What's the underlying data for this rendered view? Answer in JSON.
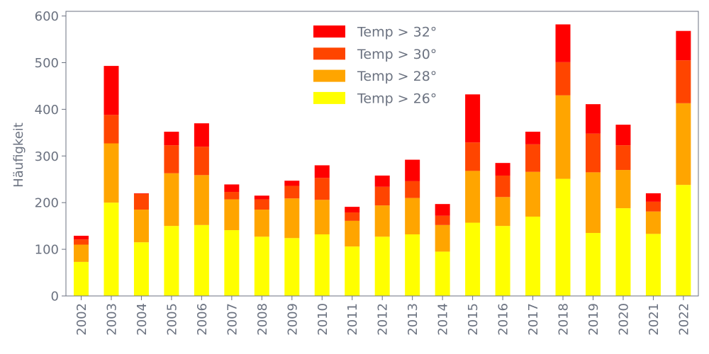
{
  "chart_data": {
    "type": "bar",
    "stacked": true,
    "ylabel": "Häufigkeit",
    "xlabel": "",
    "ylim": [
      0,
      610
    ],
    "yticks": [
      0,
      100,
      200,
      300,
      400,
      500,
      600
    ],
    "grid": false,
    "legend_position": "top-center",
    "categories": [
      "2002",
      "2003",
      "2004",
      "2005",
      "2006",
      "2007",
      "2008",
      "2009",
      "2010",
      "2011",
      "2012",
      "2013",
      "2014",
      "2015",
      "2016",
      "2017",
      "2018",
      "2019",
      "2020",
      "2021",
      "2022"
    ],
    "series": [
      {
        "name": "Temp > 26°",
        "color": "#ffff00",
        "values": [
          73,
          200,
          115,
          150,
          152,
          141,
          127,
          124,
          132,
          106,
          127,
          132,
          95,
          157,
          150,
          170,
          251,
          135,
          188,
          133,
          238
        ]
      },
      {
        "name": "Temp > 28°",
        "color": "#ffa500",
        "values": [
          37,
          127,
          70,
          113,
          107,
          66,
          58,
          85,
          74,
          55,
          67,
          78,
          57,
          111,
          62,
          96,
          179,
          130,
          82,
          48,
          175
        ]
      },
      {
        "name": "Temp > 30°",
        "color": "#ff4500",
        "values": [
          11,
          61,
          34,
          60,
          61,
          16,
          22,
          27,
          47,
          18,
          40,
          36,
          20,
          61,
          46,
          59,
          71,
          83,
          53,
          21,
          92
        ]
      },
      {
        "name": "Temp > 32°",
        "color": "#ff0000",
        "values": [
          8,
          105,
          1,
          29,
          50,
          16,
          8,
          11,
          27,
          12,
          24,
          46,
          25,
          103,
          27,
          27,
          81,
          63,
          44,
          18,
          63
        ]
      }
    ],
    "legend_order": [
      "Temp > 32°",
      "Temp > 30°",
      "Temp > 28°",
      "Temp > 26°"
    ],
    "axis_color": "#6b7280"
  }
}
